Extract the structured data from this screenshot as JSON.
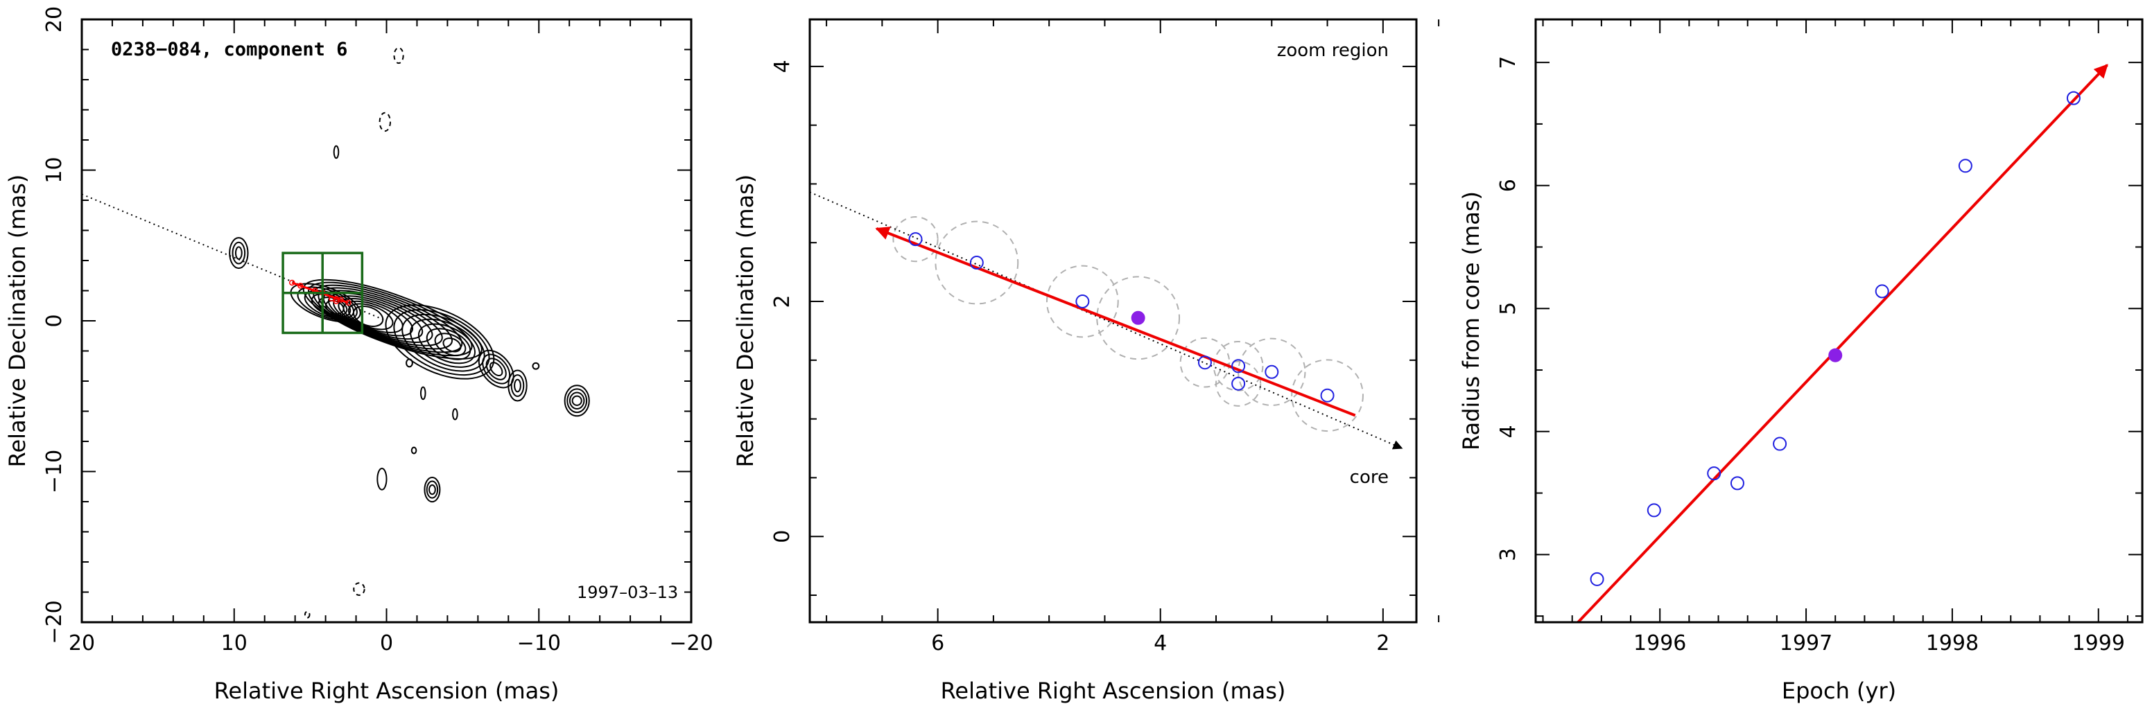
{
  "chart_data": [
    {
      "type": "contour",
      "title": "0238−084, component 6",
      "date": "1997–03–13",
      "xlabel": "Relative Right Ascension (mas)",
      "ylabel": "Relative Declination (mas)",
      "xlim": [
        20,
        -20
      ],
      "ylim": [
        -20,
        20
      ],
      "xticks": [
        20,
        10,
        0,
        -10,
        -20
      ],
      "yticks": [
        -20,
        -10,
        0,
        10,
        20
      ],
      "xtick_labels": [
        "20",
        "10",
        "0",
        "−10",
        "−20"
      ],
      "ytick_labels": [
        "−20",
        "−10",
        "0",
        "10",
        "20"
      ],
      "jet_axis": {
        "from": [
          20,
          8.4
        ],
        "to": [
          0,
          0
        ]
      },
      "zoom_box": {
        "x": [
          6.8,
          1.6
        ],
        "y": [
          -0.8,
          4.5
        ]
      },
      "component_track": [
        {
          "x": 6.2,
          "y": 2.53
        },
        {
          "x": 5.65,
          "y": 2.33
        },
        {
          "x": 4.7,
          "y": 2.0
        },
        {
          "x": 4.2,
          "y": 1.86
        },
        {
          "x": 3.6,
          "y": 1.48
        },
        {
          "x": 3.3,
          "y": 1.45
        },
        {
          "x": 3.3,
          "y": 1.3
        },
        {
          "x": 3.0,
          "y": 1.4
        },
        {
          "x": 2.5,
          "y": 1.2
        }
      ],
      "colors": {
        "contour": "#000000",
        "zoom_box": "#1a6b1a",
        "track": "#ff0000"
      }
    },
    {
      "type": "scatter",
      "title": "zoom region",
      "core_label": "core",
      "xlabel": "Relative Right Ascension (mas)",
      "ylabel": "Relative Declination (mas)",
      "xlim": [
        7.15,
        1.7
      ],
      "ylim": [
        -0.73,
        4.4
      ],
      "xticks": [
        6,
        4,
        2
      ],
      "yticks": [
        0,
        2,
        4
      ],
      "points": [
        {
          "x": 6.2,
          "y": 2.53,
          "radius": 0.2
        },
        {
          "x": 5.65,
          "y": 2.33,
          "radius": 0.37
        },
        {
          "x": 4.7,
          "y": 2.0,
          "radius": 0.32
        },
        {
          "x": 4.2,
          "y": 1.86,
          "radius": 0.37,
          "highlight": true
        },
        {
          "x": 3.6,
          "y": 1.48,
          "radius": 0.22
        },
        {
          "x": 3.3,
          "y": 1.45,
          "radius": 0.22
        },
        {
          "x": 3.3,
          "y": 1.3,
          "radius": 0.2
        },
        {
          "x": 3.0,
          "y": 1.4,
          "radius": 0.3
        },
        {
          "x": 2.5,
          "y": 1.2,
          "radius": 0.32
        }
      ],
      "fit_arrow": {
        "from": [
          2.25,
          1.03
        ],
        "to": [
          6.55,
          2.62
        ]
      },
      "jet_axis": {
        "from": [
          7.15,
          2.93
        ],
        "to": [
          1.83,
          0.75
        ]
      },
      "colors": {
        "point": "#2020e0",
        "highlight": "#8a1fe6",
        "fit": "#ee0000",
        "circle": "#b0b0b0"
      }
    },
    {
      "type": "scatter",
      "xlabel": "Epoch (yr)",
      "ylabel": "Radius from core (mas)",
      "xlim": [
        1995.15,
        1999.3
      ],
      "ylim": [
        2.45,
        7.35
      ],
      "xticks": [
        1996,
        1997,
        1998,
        1999
      ],
      "yticks": [
        3,
        4,
        5,
        6,
        7
      ],
      "points": [
        {
          "x": 1995.57,
          "y": 2.8
        },
        {
          "x": 1995.96,
          "y": 3.36
        },
        {
          "x": 1996.37,
          "y": 3.66
        },
        {
          "x": 1996.53,
          "y": 3.58
        },
        {
          "x": 1996.82,
          "y": 3.9
        },
        {
          "x": 1997.2,
          "y": 4.62,
          "highlight": true
        },
        {
          "x": 1997.52,
          "y": 5.14
        },
        {
          "x": 1998.09,
          "y": 6.16
        },
        {
          "x": 1998.83,
          "y": 6.71
        }
      ],
      "fit_line": {
        "from": [
          1995.44,
          2.45
        ],
        "to": [
          1999.06,
          6.98
        ]
      },
      "colors": {
        "point": "#2020e0",
        "highlight": "#8a1fe6",
        "fit": "#ee0000"
      }
    }
  ]
}
